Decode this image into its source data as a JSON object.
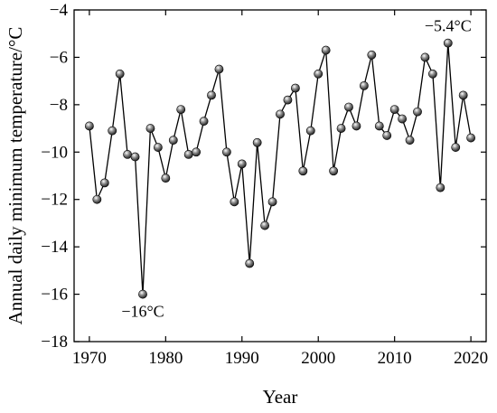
{
  "chart_data": {
    "type": "line",
    "title": "",
    "xlabel": "Year",
    "ylabel": "Annual daily minimum temperature/°C",
    "xlim": [
      1968,
      2022
    ],
    "ylim": [
      -18,
      -4
    ],
    "xticks": [
      1970,
      1980,
      1990,
      2000,
      2010,
      2020
    ],
    "yticks": [
      -18,
      -16,
      -14,
      -12,
      -10,
      -8,
      -6,
      -4
    ],
    "xtick_labels": [
      "1970",
      "1980",
      "1990",
      "2000",
      "2010",
      "2020"
    ],
    "ytick_labels": [
      "−18",
      "−16",
      "−14",
      "−12",
      "−10",
      "−8",
      "−6",
      "−4"
    ],
    "grid": false,
    "legend": "none",
    "series": [
      {
        "marker": "sphere",
        "color": "#000000",
        "x": [
          1970,
          1971,
          1972,
          1973,
          1974,
          1975,
          1976,
          1977,
          1978,
          1979,
          1980,
          1981,
          1982,
          1983,
          1984,
          1985,
          1986,
          1987,
          1988,
          1989,
          1990,
          1991,
          1992,
          1993,
          1994,
          1995,
          1996,
          1997,
          1998,
          1999,
          2000,
          2001,
          2002,
          2003,
          2004,
          2005,
          2006,
          2007,
          2008,
          2009,
          2010,
          2011,
          2012,
          2013,
          2014,
          2015,
          2016,
          2017,
          2018,
          2019,
          2020
        ],
        "values": [
          -8.9,
          -12.0,
          -11.3,
          -9.1,
          -6.7,
          -10.1,
          -10.2,
          -16.0,
          -9.0,
          -9.8,
          -11.1,
          -9.5,
          -8.2,
          -10.1,
          -10.0,
          -8.7,
          -7.6,
          -6.5,
          -10.0,
          -12.1,
          -10.5,
          -14.7,
          -9.6,
          -13.1,
          -12.1,
          -8.4,
          -7.8,
          -7.3,
          -10.8,
          -9.1,
          -6.7,
          -5.7,
          -10.8,
          -9.0,
          -8.1,
          -8.9,
          -7.2,
          -5.9,
          -8.9,
          -9.3,
          -8.2,
          -8.6,
          -9.5,
          -8.3,
          -6.0,
          -6.7,
          -11.5,
          -5.4,
          -9.8,
          -7.6,
          -9.4
        ]
      }
    ],
    "annotations": [
      {
        "text": "−16°C",
        "x": 1977,
        "y": -16.0,
        "position": "below"
      },
      {
        "text": "−5.4°C",
        "x": 2017,
        "y": -5.4,
        "position": "above"
      }
    ]
  }
}
